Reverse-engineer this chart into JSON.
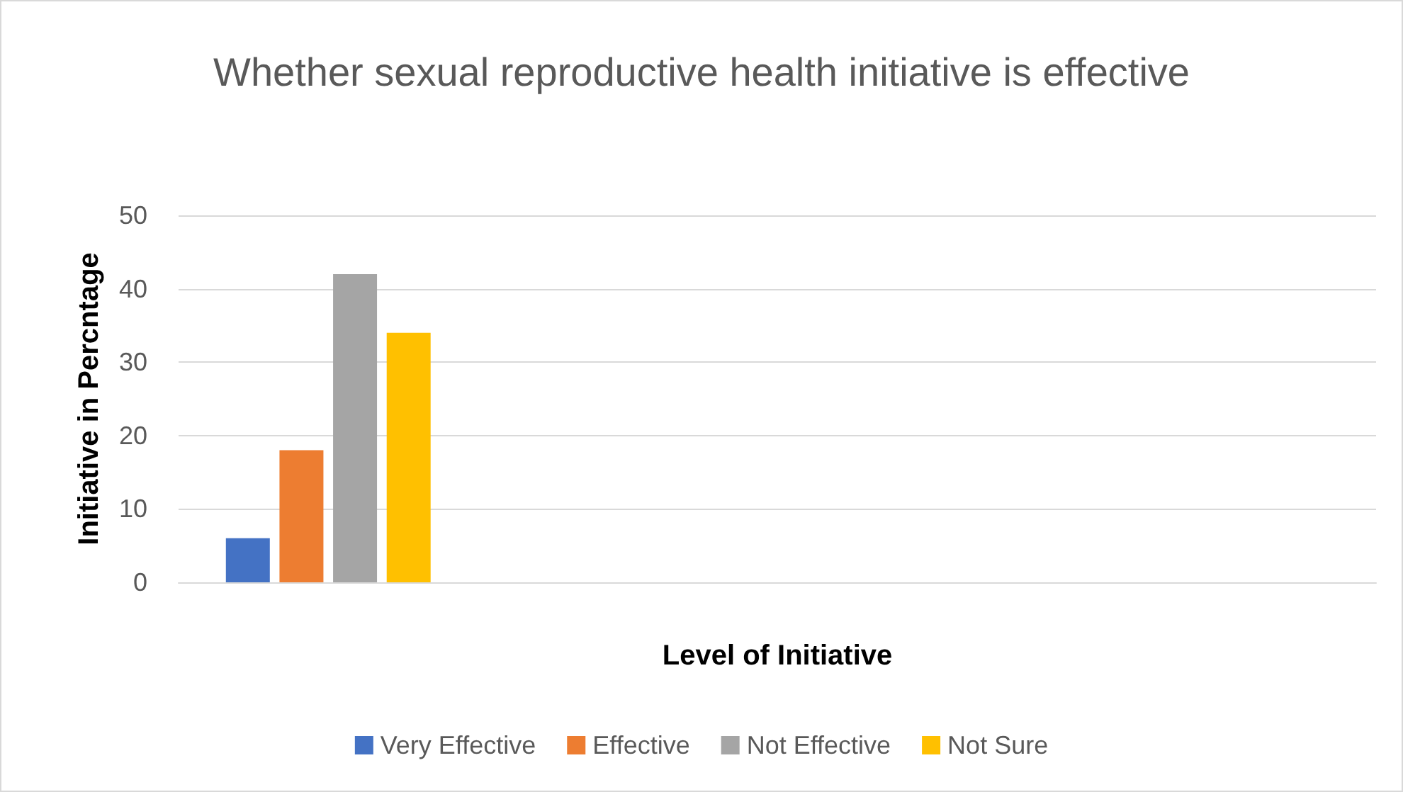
{
  "chart_data": {
    "type": "bar",
    "title": "Whether sexual reproductive health initiative is effective",
    "xlabel": "Level of Initiative",
    "ylabel": "Initiative in Percntage",
    "categories": [
      null,
      null,
      null,
      null
    ],
    "series": [
      {
        "name": "Very Effective",
        "color": "#4472c4",
        "values": [
          6,
          null,
          null,
          null
        ]
      },
      {
        "name": "Effective",
        "color": "#ed7d31",
        "values": [
          18,
          null,
          null,
          null
        ]
      },
      {
        "name": "Not Effective",
        "color": "#a5a5a5",
        "values": [
          42,
          null,
          null,
          null
        ]
      },
      {
        "name": "Not Sure",
        "color": "#ffc000",
        "values": [
          34,
          null,
          null,
          null
        ]
      }
    ],
    "ylim": [
      0,
      50
    ],
    "yticks": [
      0,
      10,
      20,
      30,
      40,
      50
    ],
    "grid": "y",
    "legend": "bottom"
  }
}
